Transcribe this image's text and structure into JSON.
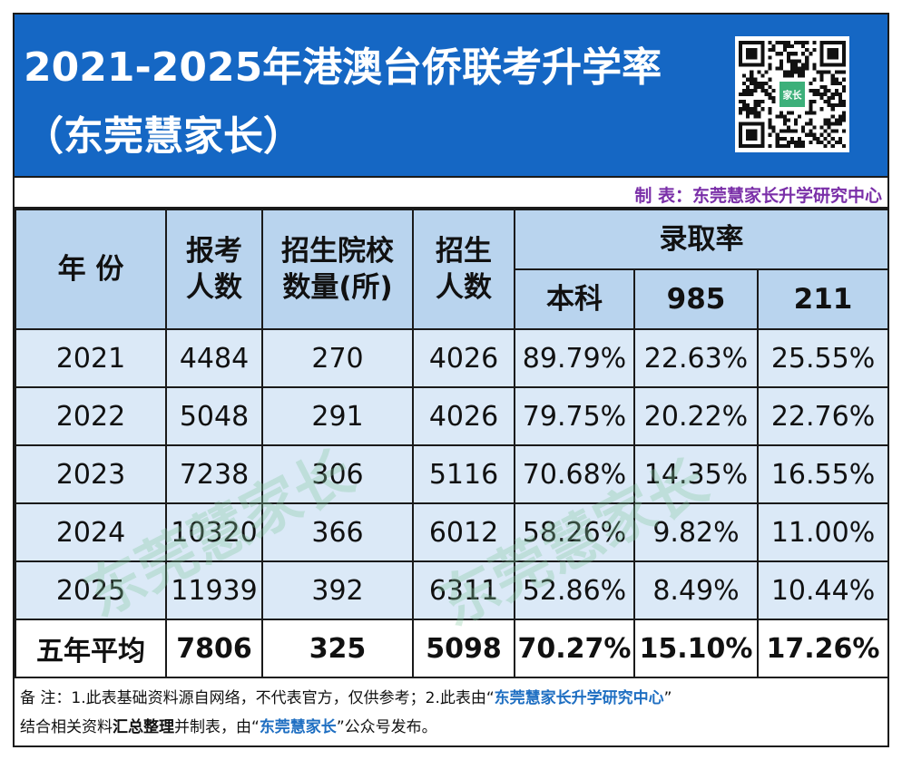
{
  "header": {
    "title_line1": "2021-2025年港澳台侨联考升学率",
    "title_line2": "（东莞慧家长）",
    "qr_label": "家长"
  },
  "credit": "制 表：东莞慧家长升学研究中心",
  "table": {
    "headers": {
      "year": "年 份",
      "applicants_l1": "报考",
      "applicants_l2": "人数",
      "schools_l1": "招生院校",
      "schools_l2": "数量(所)",
      "enroll_l1": "招生",
      "enroll_l2": "人数",
      "rate_group": "录取率",
      "rate_undergrad": "本科",
      "rate_985": "985",
      "rate_211": "211"
    },
    "rows": [
      {
        "year": "2021",
        "applicants": "4484",
        "schools": "270",
        "enroll": "4026",
        "undergrad": "89.79%",
        "r985": "22.63%",
        "r211": "25.55%"
      },
      {
        "year": "2022",
        "applicants": "5048",
        "schools": "291",
        "enroll": "4026",
        "undergrad": "79.75%",
        "r985": "20.22%",
        "r211": "22.76%"
      },
      {
        "year": "2023",
        "applicants": "7238",
        "schools": "306",
        "enroll": "5116",
        "undergrad": "70.68%",
        "r985": "14.35%",
        "r211": "16.55%"
      },
      {
        "year": "2024",
        "applicants": "10320",
        "schools": "366",
        "enroll": "6012",
        "undergrad": "58.26%",
        "r985": "9.82%",
        "r211": "11.00%"
      },
      {
        "year": "2025",
        "applicants": "11939",
        "schools": "392",
        "enroll": "6311",
        "undergrad": "52.86%",
        "r985": "8.49%",
        "r211": "10.44%"
      }
    ],
    "average": {
      "label": "五年平均",
      "applicants": "7806",
      "schools": "325",
      "enroll": "5098",
      "undergrad": "70.27%",
      "r985": "15.10%",
      "r211": "17.26%"
    }
  },
  "notes": {
    "p1": "备 注：1.此表基础资料源自网络，不代表官方，仅供参考；2.此表由“",
    "p1_hl": "东莞慧家长升学研究中心",
    "p1_end": "”",
    "p2": "结合相关资料",
    "p2_bold": "汇总整理",
    "p2_mid": "并制表，由“",
    "p2_hl": "东莞慧家长",
    "p2_end": "”公众号发布。"
  },
  "watermark": "东莞慧家长",
  "colors": {
    "header_bg": "#1567c4",
    "header_row_bg": "#b9d4ee",
    "body_row_bg": "#dbe9f7",
    "credit_text": "#7a2fa8",
    "highlight_text": "#1f6fc2"
  }
}
